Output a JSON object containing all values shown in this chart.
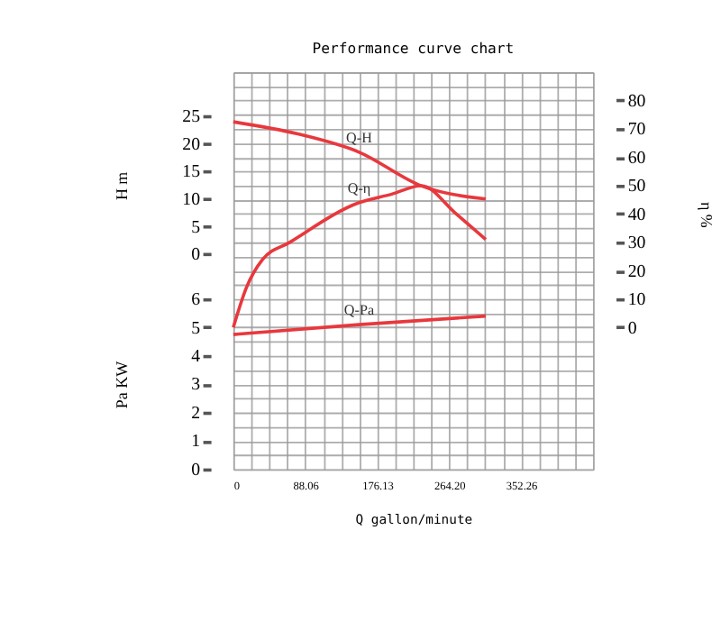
{
  "chart_data": {
    "type": "line",
    "title": "Performance curve chart",
    "xlabel": "Q gallon/minute",
    "ylabel": "H m",
    "y2label": "η %",
    "y3label": "Pa KW",
    "xlim": [
      0,
      440.3
    ],
    "xticks": [
      0,
      {
        "value": 22.015,
        "label": null
      },
      {
        "value": 44.03,
        "label": null
      },
      {
        "value": 66.045,
        "label": null
      },
      88.06,
      {
        "value": 110.075,
        "label": null
      },
      {
        "value": 132.09,
        "label": null
      },
      {
        "value": 154.105,
        "label": null
      },
      176.13,
      {
        "value": 198.135,
        "label": null
      },
      {
        "value": 220.15,
        "label": null
      },
      {
        "value": 242.165,
        "label": null
      },
      {
        "value": 264.2,
        "label": "264.20"
      },
      {
        "value": 286.195,
        "label": null
      },
      {
        "value": 308.21,
        "label": null
      },
      {
        "value": 330.225,
        "label": null
      },
      352.26,
      {
        "value": 374.255,
        "label": null
      },
      {
        "value": 396.27,
        "label": null
      },
      {
        "value": 418.285,
        "label": null
      },
      {
        "value": 440.3,
        "label": null
      }
    ],
    "ylim": [
      -39,
      33
    ],
    "yticks": [
      0,
      5,
      10,
      15,
      20,
      25
    ],
    "y2lim": [
      -50,
      90
    ],
    "y2ticks": [
      0,
      10,
      20,
      30,
      40,
      50,
      60,
      70,
      80
    ],
    "y3lim": [
      0,
      14
    ],
    "y3ticks": [
      0,
      {
        "value": 0.5,
        "label": null
      },
      1,
      {
        "value": 1.5,
        "label": null
      },
      2,
      {
        "value": 2.5,
        "label": null
      },
      3,
      {
        "value": 3.5,
        "label": null
      },
      4,
      {
        "value": 4.5,
        "label": null
      },
      5,
      {
        "value": 5.5,
        "label": null
      },
      6,
      {
        "value": 6.5,
        "label": null
      },
      {
        "value": 7,
        "label": null
      },
      {
        "value": 7.5,
        "label": null
      },
      {
        "value": 8,
        "label": null
      },
      {
        "value": 8.5,
        "label": null
      },
      {
        "value": 9,
        "label": null
      },
      {
        "value": 9.5,
        "label": null
      },
      {
        "value": 10,
        "label": null
      },
      {
        "value": 10.5,
        "label": null
      },
      {
        "value": 11,
        "label": null
      },
      {
        "value": 11.5,
        "label": null
      },
      {
        "value": 12,
        "label": null
      },
      {
        "value": 12.5,
        "label": null
      },
      {
        "value": 13,
        "label": null
      },
      {
        "value": 13.5,
        "label": null
      },
      {
        "value": 14,
        "label": null
      }
    ],
    "grid": true,
    "series": [
      {
        "name": "Q-H",
        "color": "#e8383d",
        "axis": "y",
        "x": [
          0,
          79,
          154,
          230,
          309
        ],
        "values": [
          24,
          21.8,
          18.5,
          12.4,
          10
        ]
      },
      {
        "name": "Q-η",
        "color": "#e8383d",
        "axis": "y2",
        "x": [
          0,
          16,
          36,
          69,
          154,
          194,
          230,
          273,
          309
        ],
        "values": [
          0,
          14,
          24,
          30,
          44,
          47,
          50,
          40,
          31
        ]
      },
      {
        "name": "Q-Pa",
        "color": "#e8383d",
        "axis": "y3",
        "x": [
          0,
          154,
          309
        ],
        "values": [
          4.75,
          5.1,
          5.4
        ]
      }
    ]
  }
}
